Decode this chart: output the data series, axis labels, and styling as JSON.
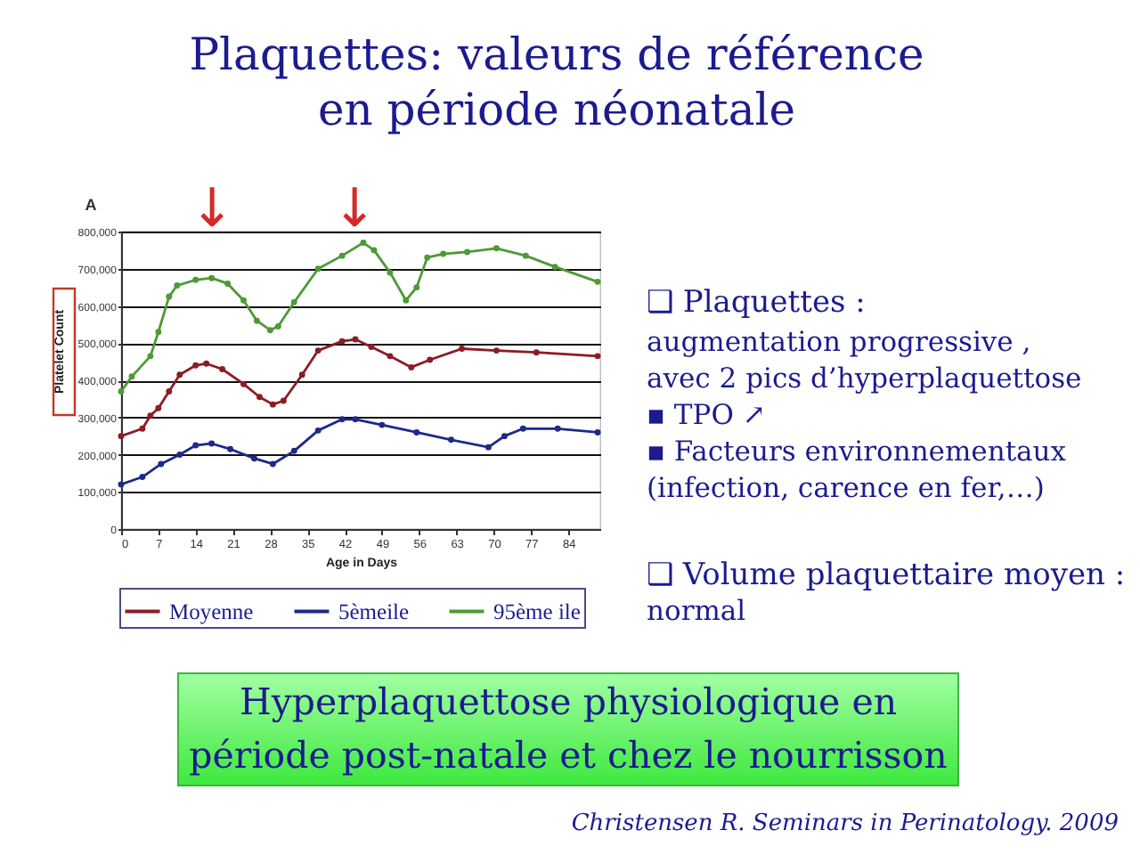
{
  "chart_data": {
    "type": "line",
    "title": "Plaquettes: valeurs de référence\nen période néonatale",
    "xlabel": "Age in Days",
    "ylabel": "Platelet Count",
    "xlim": [
      0,
      90
    ],
    "ylim": [
      0,
      800000
    ],
    "xticks": [
      0,
      7,
      14,
      21,
      28,
      35,
      42,
      49,
      56,
      63,
      70,
      77,
      84
    ],
    "yticks": [
      0,
      {
        "value": 100000,
        "label": "100,000"
      },
      {
        "value": 200000,
        "label": "200,000"
      },
      {
        "value": 300000,
        "label": "300,000"
      },
      {
        "value": 400000,
        "label": "400,000"
      },
      {
        "value": 500000,
        "label": "500,000"
      },
      {
        "value": 600000,
        "label": "600,000"
      },
      {
        "value": 700000,
        "label": "700,000"
      },
      {
        "value": 800000,
        "label": "800,000"
      }
    ],
    "grid": "y",
    "legend": "bottom",
    "marker": "circle",
    "line_style": "solid",
    "series": [
      {
        "name": "Moyenne",
        "color": "#8b1c24",
        "x": [
          0,
          4,
          5.5,
          7,
          9,
          11,
          14,
          16,
          19,
          23,
          26,
          28.5,
          30.5,
          34,
          37,
          41.5,
          44,
          47,
          50.5,
          54.5,
          58,
          64,
          70.5,
          78,
          89.5
        ],
        "values": [
          250000,
          270000,
          305000,
          325000,
          370000,
          415000,
          440000,
          445000,
          430000,
          390000,
          355000,
          335000,
          345000,
          415000,
          480000,
          505000,
          510000,
          490000,
          465000,
          435000,
          455000,
          485000,
          480000,
          475000,
          465000
        ]
      },
      {
        "name": "5èmeile",
        "color": "#1c2a8a",
        "x": [
          0,
          4,
          7.5,
          11,
          14,
          17,
          20.5,
          25,
          28.5,
          32.5,
          37,
          41.5,
          44,
          49,
          55.5,
          62,
          69,
          72,
          75.5,
          82,
          89.5
        ],
        "values": [
          120000,
          140000,
          175000,
          200000,
          225000,
          230000,
          215000,
          190000,
          175000,
          210000,
          265000,
          295000,
          295000,
          280000,
          260000,
          240000,
          220000,
          250000,
          270000,
          270000,
          260000
        ]
      },
      {
        "name": "95ème ile",
        "color": "#4e9a35",
        "x": [
          0,
          2,
          5.5,
          7,
          9,
          10.5,
          14,
          17,
          20,
          23,
          25.5,
          28,
          29.5,
          32.5,
          37,
          41.5,
          45.5,
          47.5,
          50.5,
          53.5,
          55.5,
          57.5,
          60.5,
          65,
          70.5,
          76,
          81.5,
          89.5
        ],
        "values": [
          370000,
          410000,
          465000,
          530000,
          625000,
          655000,
          670000,
          675000,
          660000,
          615000,
          560000,
          535000,
          545000,
          610000,
          700000,
          735000,
          770000,
          750000,
          690000,
          615000,
          650000,
          730000,
          740000,
          745000,
          755000,
          735000,
          705000,
          665000
        ]
      }
    ],
    "annotations": [
      "↓",
      "↓",
      "A",
      "❑ Plaquettes :",
      "augmentation progressive ,\navec 2 pics d’hyperplaquettose\n▪ TPO ↗\n▪ Facteurs environnementaux\n(infection, carence en fer,…)",
      "❑ Volume plaquettaire moyen :",
      "normal",
      "Hyperplaquettose physiologique en\npériode post-natale et chez le nourrisson",
      "Christensen R. Seminars in Perinatology. 2009"
    ]
  }
}
